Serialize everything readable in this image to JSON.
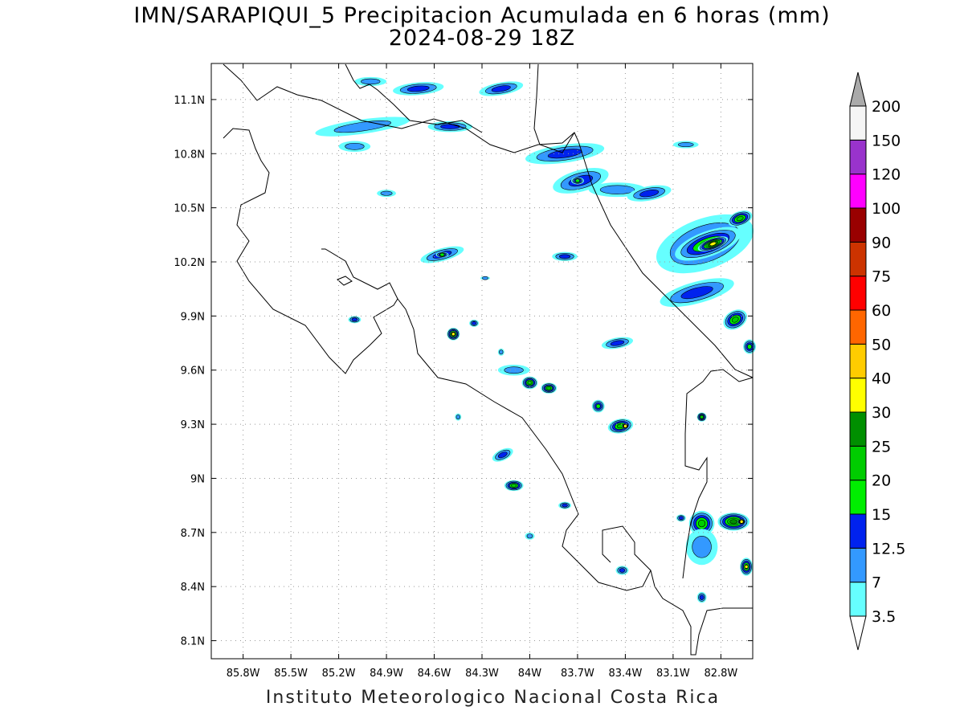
{
  "title": {
    "line1": "IMN/SARAPIQUI_5 Precipitacion Acumulada en 6 horas (mm)",
    "line2": "2024-08-29 18Z"
  },
  "footer": "Instituto Meteorologico Nacional Costa Rica",
  "map": {
    "lon_range": [
      -86.0,
      -82.6
    ],
    "lat_range": [
      8.0,
      11.3
    ],
    "x_ticks": [
      {
        "value": -85.8,
        "label": "85.8W"
      },
      {
        "value": -85.5,
        "label": "85.5W"
      },
      {
        "value": -85.2,
        "label": "85.2W"
      },
      {
        "value": -84.9,
        "label": "84.9W"
      },
      {
        "value": -84.6,
        "label": "84.6W"
      },
      {
        "value": -84.3,
        "label": "84.3W"
      },
      {
        "value": -84.0,
        "label": "84W"
      },
      {
        "value": -83.7,
        "label": "83.7W"
      },
      {
        "value": -83.4,
        "label": "83.4W"
      },
      {
        "value": -83.1,
        "label": "83.1W"
      },
      {
        "value": -82.8,
        "label": "82.8W"
      }
    ],
    "y_ticks": [
      {
        "value": 8.1,
        "label": "8.1N"
      },
      {
        "value": 8.4,
        "label": "8.4N"
      },
      {
        "value": 8.7,
        "label": "8.7N"
      },
      {
        "value": 9.0,
        "label": "9N"
      },
      {
        "value": 9.3,
        "label": "9.3N"
      },
      {
        "value": 9.6,
        "label": "9.6N"
      },
      {
        "value": 9.9,
        "label": "9.9N"
      },
      {
        "value": 10.2,
        "label": "10.2N"
      },
      {
        "value": 10.5,
        "label": "10.5N"
      },
      {
        "value": 10.8,
        "label": "10.8N"
      },
      {
        "value": 11.1,
        "label": "11.1N"
      }
    ],
    "grid": "dotted"
  },
  "colorbar": {
    "labels": [
      "3.5",
      "7",
      "12.5",
      "15",
      "20",
      "25",
      "30",
      "40",
      "50",
      "60",
      "75",
      "90",
      "100",
      "120",
      "150",
      "200"
    ],
    "colors": [
      "#66ffff",
      "#3399ff",
      "#0022ee",
      "#00ee00",
      "#00cc00",
      "#008f00",
      "#ffff00",
      "#ffcc00",
      "#ff6600",
      "#ff0000",
      "#cc3300",
      "#990000",
      "#ff00ff",
      "#9933cc",
      "#f5f5f5",
      "#aaaaaa"
    ],
    "under_color": "#ffffff",
    "over_color": "#aaaaaa"
  },
  "precip_cells": [
    {
      "lon": -85.0,
      "lat": 11.2,
      "level": 1,
      "rx": 0.1,
      "ry": 0.025,
      "rot": 0
    },
    {
      "lon": -84.7,
      "lat": 11.16,
      "level": 2,
      "rx": 0.16,
      "ry": 0.035,
      "rot": -5
    },
    {
      "lon": -84.18,
      "lat": 11.16,
      "level": 2,
      "rx": 0.14,
      "ry": 0.035,
      "rot": -10
    },
    {
      "lon": -85.05,
      "lat": 10.95,
      "level": 1,
      "rx": 0.3,
      "ry": 0.04,
      "rot": -8
    },
    {
      "lon": -84.5,
      "lat": 10.95,
      "level": 2,
      "rx": 0.14,
      "ry": 0.03,
      "rot": 0
    },
    {
      "lon": -85.1,
      "lat": 10.84,
      "level": 1,
      "rx": 0.1,
      "ry": 0.03,
      "rot": 0
    },
    {
      "lon": -83.78,
      "lat": 10.8,
      "level": 2,
      "rx": 0.25,
      "ry": 0.05,
      "rot": -8
    },
    {
      "lon": -83.02,
      "lat": 10.85,
      "level": 1,
      "rx": 0.08,
      "ry": 0.02,
      "rot": 0
    },
    {
      "lon": -83.68,
      "lat": 10.65,
      "level": 2,
      "rx": 0.18,
      "ry": 0.06,
      "rot": -15
    },
    {
      "lon": -83.7,
      "lat": 10.65,
      "level": 3,
      "rx": 0.04,
      "ry": 0.02,
      "rot": 0
    },
    {
      "lon": -83.45,
      "lat": 10.6,
      "level": 1,
      "rx": 0.18,
      "ry": 0.04,
      "rot": 0
    },
    {
      "lon": -83.25,
      "lat": 10.58,
      "level": 2,
      "rx": 0.14,
      "ry": 0.04,
      "rot": -10
    },
    {
      "lon": -84.9,
      "lat": 10.58,
      "level": 1,
      "rx": 0.06,
      "ry": 0.02,
      "rot": 0
    },
    {
      "lon": -84.55,
      "lat": 10.24,
      "level": 2,
      "rx": 0.14,
      "ry": 0.035,
      "rot": -15
    },
    {
      "lon": -84.55,
      "lat": 10.24,
      "level": 3,
      "rx": 0.04,
      "ry": 0.015,
      "rot": 0
    },
    {
      "lon": -83.78,
      "lat": 10.23,
      "level": 2,
      "rx": 0.08,
      "ry": 0.025,
      "rot": 0
    },
    {
      "lon": -82.9,
      "lat": 10.3,
      "level": 2,
      "rx": 0.32,
      "ry": 0.14,
      "rot": -20
    },
    {
      "lon": -82.88,
      "lat": 10.3,
      "level": 4,
      "rx": 0.22,
      "ry": 0.07,
      "rot": -20
    },
    {
      "lon": -82.85,
      "lat": 10.3,
      "level": 6,
      "rx": 0.1,
      "ry": 0.03,
      "rot": -20
    },
    {
      "lon": -82.68,
      "lat": 10.44,
      "level": 4,
      "rx": 0.08,
      "ry": 0.04,
      "rot": -20
    },
    {
      "lon": -82.95,
      "lat": 10.03,
      "level": 2,
      "rx": 0.24,
      "ry": 0.06,
      "rot": -15
    },
    {
      "lon": -82.71,
      "lat": 9.88,
      "level": 4,
      "rx": 0.08,
      "ry": 0.05,
      "rot": -30
    },
    {
      "lon": -82.62,
      "lat": 9.73,
      "level": 3,
      "rx": 0.04,
      "ry": 0.04,
      "rot": 0
    },
    {
      "lon": -84.48,
      "lat": 9.8,
      "level": 5,
      "rx": 0.04,
      "ry": 0.035,
      "rot": 0
    },
    {
      "lon": -84.48,
      "lat": 9.8,
      "level": 6,
      "rx": 0.015,
      "ry": 0.015,
      "rot": 0
    },
    {
      "lon": -84.35,
      "lat": 9.86,
      "level": 2,
      "rx": 0.03,
      "ry": 0.02,
      "rot": 0
    },
    {
      "lon": -85.1,
      "lat": 9.88,
      "level": 2,
      "rx": 0.04,
      "ry": 0.02,
      "rot": 0
    },
    {
      "lon": -83.45,
      "lat": 9.75,
      "level": 2,
      "rx": 0.1,
      "ry": 0.03,
      "rot": -10
    },
    {
      "lon": -84.1,
      "lat": 9.6,
      "level": 1,
      "rx": 0.1,
      "ry": 0.03,
      "rot": 0
    },
    {
      "lon": -84.0,
      "lat": 9.53,
      "level": 4,
      "rx": 0.05,
      "ry": 0.035,
      "rot": 0
    },
    {
      "lon": -83.88,
      "lat": 9.5,
      "level": 4,
      "rx": 0.05,
      "ry": 0.03,
      "rot": 0
    },
    {
      "lon": -83.57,
      "lat": 9.4,
      "level": 3,
      "rx": 0.04,
      "ry": 0.035,
      "rot": 0
    },
    {
      "lon": -83.43,
      "lat": 9.29,
      "level": 4,
      "rx": 0.08,
      "ry": 0.04,
      "rot": -10
    },
    {
      "lon": -83.4,
      "lat": 9.29,
      "level": 6,
      "rx": 0.02,
      "ry": 0.015,
      "rot": 0
    },
    {
      "lon": -82.92,
      "lat": 9.34,
      "level": 4,
      "rx": 0.03,
      "ry": 0.025,
      "rot": 0
    },
    {
      "lon": -84.17,
      "lat": 9.13,
      "level": 2,
      "rx": 0.07,
      "ry": 0.03,
      "rot": -25
    },
    {
      "lon": -84.1,
      "lat": 8.96,
      "level": 4,
      "rx": 0.06,
      "ry": 0.03,
      "rot": 0
    },
    {
      "lon": -83.78,
      "lat": 8.85,
      "level": 2,
      "rx": 0.04,
      "ry": 0.02,
      "rot": 0
    },
    {
      "lon": -83.05,
      "lat": 8.78,
      "level": 2,
      "rx": 0.03,
      "ry": 0.02,
      "rot": 0
    },
    {
      "lon": -82.92,
      "lat": 8.75,
      "level": 4,
      "rx": 0.08,
      "ry": 0.07,
      "rot": 0
    },
    {
      "lon": -82.72,
      "lat": 8.76,
      "level": 5,
      "rx": 0.1,
      "ry": 0.05,
      "rot": 0
    },
    {
      "lon": -82.67,
      "lat": 8.76,
      "level": 6,
      "rx": 0.025,
      "ry": 0.015,
      "rot": 0
    },
    {
      "lon": -82.64,
      "lat": 8.51,
      "level": 4,
      "rx": 0.04,
      "ry": 0.05,
      "rot": 0
    },
    {
      "lon": -82.64,
      "lat": 8.51,
      "level": 6,
      "rx": 0.012,
      "ry": 0.015,
      "rot": 0
    },
    {
      "lon": -82.92,
      "lat": 8.62,
      "level": 1,
      "rx": 0.1,
      "ry": 0.1,
      "rot": 0
    },
    {
      "lon": -83.42,
      "lat": 8.49,
      "level": 2,
      "rx": 0.04,
      "ry": 0.025,
      "rot": 0
    },
    {
      "lon": -82.92,
      "lat": 8.34,
      "level": 2,
      "rx": 0.03,
      "ry": 0.03,
      "rot": 0
    },
    {
      "lon": -84.0,
      "lat": 8.68,
      "level": 1,
      "rx": 0.03,
      "ry": 0.02,
      "rot": 0
    },
    {
      "lon": -84.45,
      "lat": 9.34,
      "level": 1,
      "rx": 0.02,
      "ry": 0.02,
      "rot": 0
    },
    {
      "lon": -84.18,
      "lat": 9.7,
      "level": 1,
      "rx": 0.02,
      "ry": 0.02,
      "rot": 0
    },
    {
      "lon": -84.28,
      "lat": 10.11,
      "level": 1,
      "rx": 0.03,
      "ry": 0.01,
      "rot": 0
    }
  ]
}
